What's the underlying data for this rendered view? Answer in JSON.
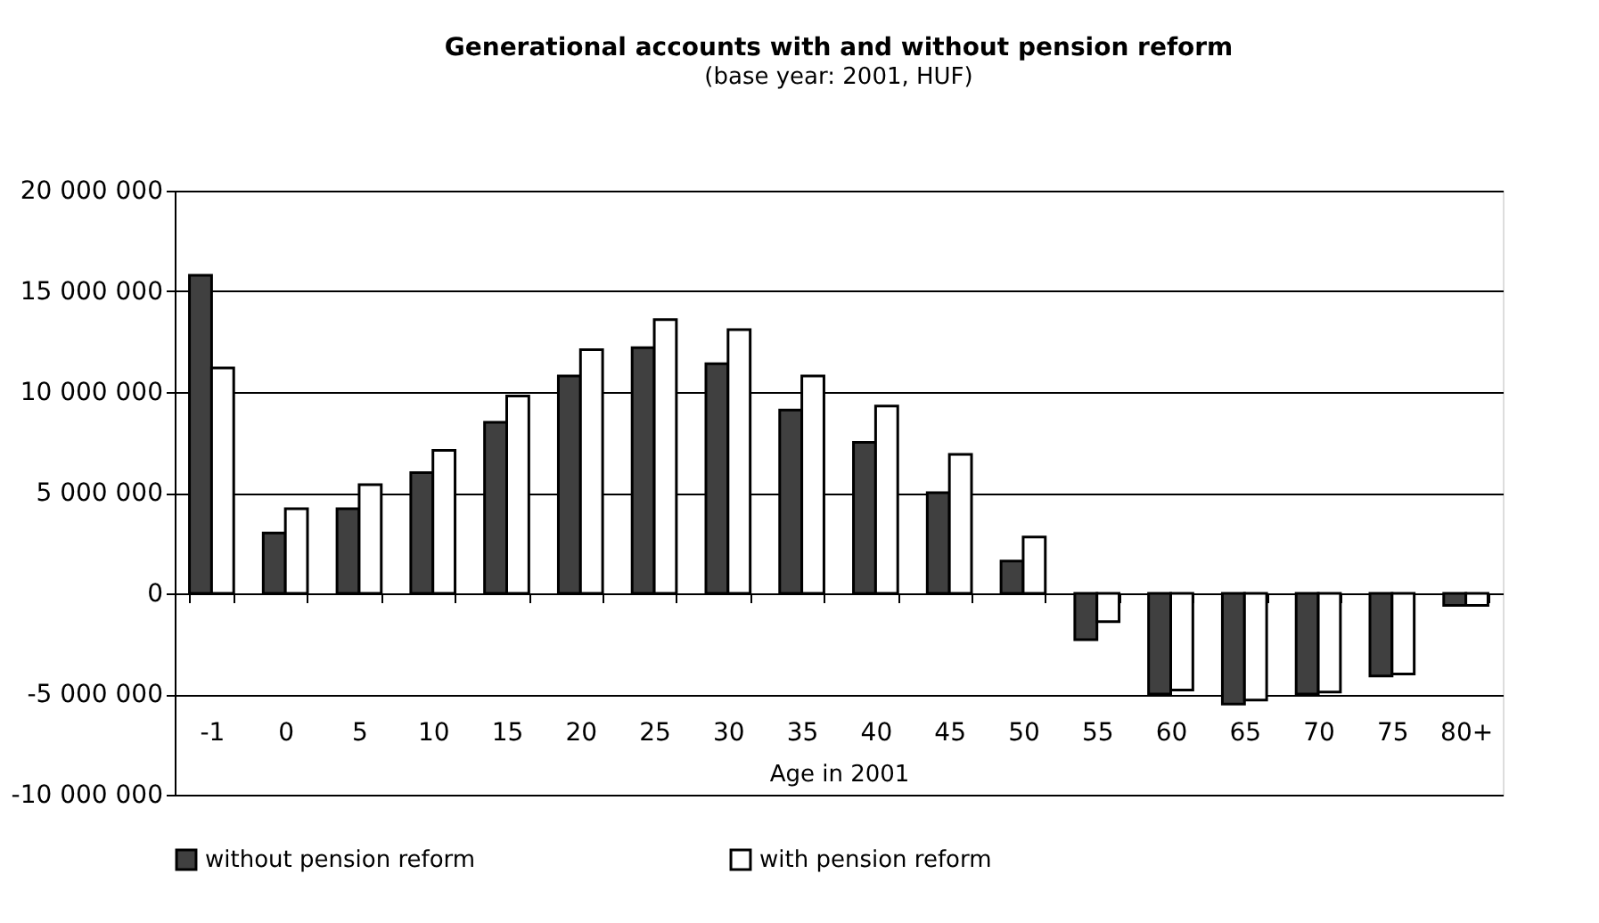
{
  "chart_data": {
    "type": "bar",
    "title": "Generational accounts with and without pension reform",
    "subtitle": "(base year: 2001, HUF)",
    "xlabel": "Age in 2001",
    "categories": [
      "-1",
      "0",
      "5",
      "10",
      "15",
      "20",
      "25",
      "30",
      "35",
      "40",
      "45",
      "50",
      "55",
      "60",
      "65",
      "70",
      "75",
      "80+"
    ],
    "series": [
      {
        "name": "without pension reform",
        "color": "#404040",
        "values": [
          15800000,
          3000000,
          4200000,
          6000000,
          8500000,
          10800000,
          12200000,
          11400000,
          9100000,
          7500000,
          5000000,
          1600000,
          -2300000,
          -5000000,
          -5500000,
          -5000000,
          -4100000,
          -600000
        ]
      },
      {
        "name": "with pension reform",
        "color": "#ffffff",
        "values": [
          11200000,
          4200000,
          5400000,
          7100000,
          9800000,
          12100000,
          13600000,
          13100000,
          10800000,
          9300000,
          6900000,
          2800000,
          -1400000,
          -4800000,
          -5300000,
          -4900000,
          -4000000,
          -600000
        ]
      }
    ],
    "ylim": [
      -10000000,
      20000000
    ],
    "yticks": [
      {
        "value": -10000000,
        "label": "-10 000 000"
      },
      {
        "value": -5000000,
        "label": "-5 000 000"
      },
      {
        "value": 0,
        "label": "0"
      },
      {
        "value": 5000000,
        "label": "5 000 000"
      },
      {
        "value": 10000000,
        "label": "10 000 000"
      },
      {
        "value": 15000000,
        "label": "15 000 000"
      },
      {
        "value": 20000000,
        "label": "20 000 000"
      }
    ],
    "grid": "y",
    "legend": "bottom"
  }
}
